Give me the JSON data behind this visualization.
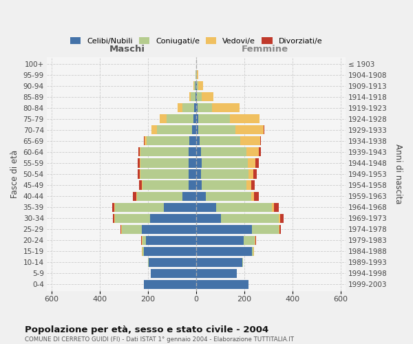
{
  "age_groups": [
    "0-4",
    "5-9",
    "10-14",
    "15-19",
    "20-24",
    "25-29",
    "30-34",
    "35-39",
    "40-44",
    "45-49",
    "50-54",
    "55-59",
    "60-64",
    "65-69",
    "70-74",
    "75-79",
    "80-84",
    "85-89",
    "90-94",
    "95-99",
    "100+"
  ],
  "birth_years": [
    "1999-2003",
    "1994-1998",
    "1989-1993",
    "1984-1988",
    "1979-1983",
    "1974-1978",
    "1969-1973",
    "1964-1968",
    "1959-1963",
    "1954-1958",
    "1949-1953",
    "1944-1948",
    "1939-1943",
    "1934-1938",
    "1929-1933",
    "1924-1928",
    "1919-1923",
    "1914-1918",
    "1909-1913",
    "1904-1908",
    "≤ 1903"
  ],
  "maschi_celibi": [
    218,
    188,
    198,
    218,
    208,
    225,
    190,
    135,
    58,
    32,
    30,
    32,
    32,
    28,
    18,
    12,
    8,
    4,
    2,
    0,
    0
  ],
  "maschi_coniugati": [
    0,
    0,
    2,
    6,
    16,
    82,
    148,
    202,
    188,
    192,
    202,
    198,
    198,
    178,
    145,
    112,
    48,
    18,
    6,
    2,
    0
  ],
  "maschi_vedovi": [
    0,
    0,
    0,
    1,
    2,
    3,
    2,
    2,
    2,
    2,
    2,
    3,
    5,
    8,
    22,
    26,
    22,
    6,
    4,
    0,
    0
  ],
  "maschi_divorziati": [
    0,
    0,
    0,
    0,
    2,
    3,
    5,
    8,
    15,
    12,
    10,
    10,
    5,
    2,
    1,
    0,
    0,
    0,
    0,
    0,
    0
  ],
  "femmine_nubili": [
    218,
    168,
    192,
    232,
    198,
    232,
    102,
    82,
    40,
    22,
    20,
    22,
    20,
    15,
    10,
    8,
    5,
    3,
    2,
    0,
    0
  ],
  "femmine_coniugate": [
    0,
    0,
    2,
    6,
    46,
    112,
    242,
    232,
    188,
    188,
    198,
    192,
    188,
    168,
    152,
    132,
    62,
    20,
    8,
    2,
    0
  ],
  "femmine_vedove": [
    0,
    0,
    0,
    1,
    2,
    2,
    5,
    8,
    12,
    18,
    20,
    32,
    52,
    82,
    118,
    122,
    112,
    48,
    20,
    6,
    0
  ],
  "femmine_divorziate": [
    0,
    0,
    0,
    0,
    2,
    5,
    15,
    20,
    20,
    15,
    15,
    15,
    8,
    5,
    2,
    1,
    0,
    0,
    0,
    0,
    0
  ],
  "color_celibi": "#4472a8",
  "color_coniugati": "#b5cc8e",
  "color_vedovi": "#f0c060",
  "color_divorziati": "#c0392b",
  "xlim": 620,
  "xticks": [
    -600,
    -400,
    -200,
    0,
    200,
    400,
    600
  ],
  "title": "Popolazione per età, sesso e stato civile - 2004",
  "subtitle": "COMUNE DI CERRETO GUIDI (FI) - Dati ISTAT 1° gennaio 2004 - Elaborazione TUTTITALIA.IT",
  "ylabel_left": "Fasce di età",
  "ylabel_right": "Anni di nascita",
  "maschi_label": "Maschi",
  "femmine_label": "Femmine",
  "maschi_color": "#555555",
  "femmine_color": "#888888",
  "legend_labels": [
    "Celibi/Nubili",
    "Coniugati/e",
    "Vedovi/e",
    "Divorziati/e"
  ],
  "fig_bg": "#f0f0f0",
  "plot_bg": "#f5f5f5",
  "grid_color": "#cccccc",
  "bar_height": 0.82
}
